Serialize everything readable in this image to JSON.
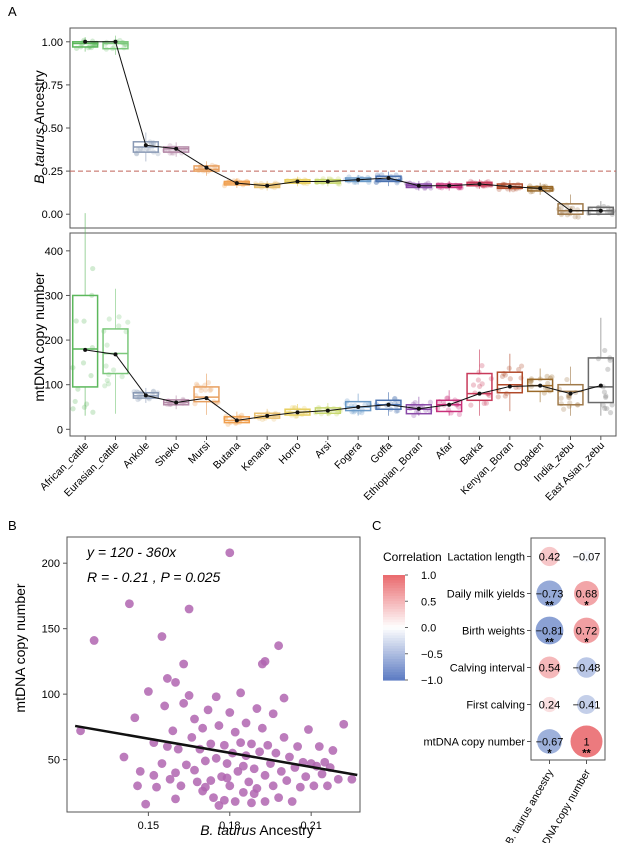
{
  "chart_data": [
    {
      "type": "box",
      "panel_label": "A",
      "ylabel_italic": "B. taurus",
      "ylabel_rest": " Ancestry",
      "ylim": [
        -0.08,
        1.08
      ],
      "yticks": [
        "1.00",
        "0.75",
        "0.50",
        "0.25",
        "0.00"
      ],
      "ytick_values": [
        1.0,
        0.75,
        0.5,
        0.25,
        0.0
      ],
      "reference_line": 0.25,
      "groups": [
        {
          "name": "African_cattle",
          "color": "#5cb85c",
          "q1": 0.97,
          "median": 0.99,
          "q3": 1.0,
          "mean": 1.0
        },
        {
          "name": "Eurasian_cattle",
          "color": "#7cc87c",
          "q1": 0.96,
          "median": 0.99,
          "q3": 1.0,
          "mean": 1.0
        },
        {
          "name": "Ankole",
          "color": "#8a9ab5",
          "q1": 0.36,
          "median": 0.39,
          "q3": 0.42,
          "mean": 0.4
        },
        {
          "name": "Sheko",
          "color": "#b58aa8",
          "q1": 0.36,
          "median": 0.38,
          "q3": 0.39,
          "mean": 0.38
        },
        {
          "name": "Mursi",
          "color": "#e8a060",
          "q1": 0.25,
          "median": 0.26,
          "q3": 0.28,
          "mean": 0.27
        },
        {
          "name": "Butana",
          "color": "#f0a050",
          "q1": 0.17,
          "median": 0.18,
          "q3": 0.19,
          "mean": 0.18
        },
        {
          "name": "Kenana",
          "color": "#e8c070",
          "q1": 0.155,
          "median": 0.165,
          "q3": 0.175,
          "mean": 0.165
        },
        {
          "name": "Horro",
          "color": "#e8d060",
          "q1": 0.18,
          "median": 0.19,
          "q3": 0.2,
          "mean": 0.19
        },
        {
          "name": "Arsi",
          "color": "#c8d870",
          "q1": 0.18,
          "median": 0.19,
          "q3": 0.2,
          "mean": 0.19
        },
        {
          "name": "Fogera",
          "color": "#6a9ac8",
          "q1": 0.19,
          "median": 0.2,
          "q3": 0.21,
          "mean": 0.2
        },
        {
          "name": "Goffa",
          "color": "#4a72b0",
          "q1": 0.19,
          "median": 0.2,
          "q3": 0.22,
          "mean": 0.21
        },
        {
          "name": "Ethiopian_Boran",
          "color": "#8a4aa8",
          "q1": 0.155,
          "median": 0.165,
          "q3": 0.175,
          "mean": 0.165
        },
        {
          "name": "Afar",
          "color": "#c8307a",
          "q1": 0.155,
          "median": 0.165,
          "q3": 0.175,
          "mean": 0.165
        },
        {
          "name": "Barka",
          "color": "#c83a5a",
          "q1": 0.165,
          "median": 0.175,
          "q3": 0.185,
          "mean": 0.175
        },
        {
          "name": "Kenyan_Boran",
          "color": "#b04a2a",
          "q1": 0.15,
          "median": 0.16,
          "q3": 0.175,
          "mean": 0.16
        },
        {
          "name": "Ogaden",
          "color": "#9a6a2a",
          "q1": 0.135,
          "median": 0.15,
          "q3": 0.16,
          "mean": 0.15
        },
        {
          "name": "India_zebu",
          "color": "#a07a4a",
          "q1": 0.0,
          "median": 0.02,
          "q3": 0.06,
          "mean": 0.02
        },
        {
          "name": "East Asian_zebu",
          "color": "#6a6a6a",
          "q1": 0.0,
          "median": 0.02,
          "q3": 0.04,
          "mean": 0.02
        }
      ]
    },
    {
      "type": "box",
      "ylabel": "mtDNA copy number",
      "ylim": [
        -15,
        440
      ],
      "yticks": [
        "400",
        "300",
        "200",
        "100",
        "0"
      ],
      "ytick_values": [
        400,
        300,
        200,
        100,
        0
      ],
      "groups": [
        {
          "name": "African_cattle",
          "q1": 95,
          "median": 180,
          "q3": 300,
          "mean": 178
        },
        {
          "name": "Eurasian_cattle",
          "q1": 125,
          "median": 170,
          "q3": 225,
          "mean": 168
        },
        {
          "name": "Ankole",
          "q1": 70,
          "median": 75,
          "q3": 82,
          "mean": 76
        },
        {
          "name": "Sheko",
          "q1": 55,
          "median": 60,
          "q3": 66,
          "mean": 60
        },
        {
          "name": "Mursi",
          "q1": 62,
          "median": 72,
          "q3": 95,
          "mean": 70
        },
        {
          "name": "Butana",
          "q1": 15,
          "median": 20,
          "q3": 28,
          "mean": 20
        },
        {
          "name": "Kenana",
          "q1": 25,
          "median": 30,
          "q3": 36,
          "mean": 30
        },
        {
          "name": "Horro",
          "q1": 32,
          "median": 38,
          "q3": 45,
          "mean": 38
        },
        {
          "name": "Arsi",
          "q1": 36,
          "median": 42,
          "q3": 48,
          "mean": 42
        },
        {
          "name": "Fogera",
          "q1": 42,
          "median": 50,
          "q3": 62,
          "mean": 50
        },
        {
          "name": "Goffa",
          "q1": 45,
          "median": 55,
          "q3": 65,
          "mean": 55
        },
        {
          "name": "Ethiopian_Boran",
          "q1": 35,
          "median": 45,
          "q3": 55,
          "mean": 46
        },
        {
          "name": "Afar",
          "q1": 40,
          "median": 55,
          "q3": 65,
          "mean": 55
        },
        {
          "name": "Barka",
          "q1": 65,
          "median": 80,
          "q3": 125,
          "mean": 80
        },
        {
          "name": "Kenyan_Boran",
          "q1": 82,
          "median": 100,
          "q3": 128,
          "mean": 96
        },
        {
          "name": "Ogaden",
          "q1": 85,
          "median": 98,
          "q3": 112,
          "mean": 98
        },
        {
          "name": "India_zebu",
          "q1": 55,
          "median": 85,
          "q3": 100,
          "mean": 80
        },
        {
          "name": "East Asian_zebu",
          "q1": 60,
          "median": 95,
          "q3": 160,
          "mean": 98
        }
      ]
    },
    {
      "type": "scatter",
      "panel_label": "B",
      "equation": "y = 120 - 360x",
      "stats": "R = - 0.21 , P = 0.025",
      "xlabel_italic": "B. taurus",
      "xlabel_rest": " Ancestry",
      "ylabel": "mtDNA copy number",
      "xlim": [
        0.12,
        0.228
      ],
      "ylim": [
        10,
        220
      ],
      "xticks": [
        "0.15",
        "0.18",
        "0.21"
      ],
      "xtick_values": [
        0.15,
        0.18,
        0.21
      ],
      "yticks": [
        "200",
        "150",
        "100",
        "50"
      ],
      "ytick_values": [
        200,
        150,
        100,
        50
      ],
      "regression": {
        "intercept": 120,
        "slope": -360
      },
      "point_color": "#b065b0",
      "points": [
        [
          0.125,
          72
        ],
        [
          0.13,
          141
        ],
        [
          0.143,
          169
        ],
        [
          0.155,
          144
        ],
        [
          0.165,
          165
        ],
        [
          0.18,
          208
        ],
        [
          0.198,
          137
        ],
        [
          0.193,
          125
        ],
        [
          0.192,
          123
        ],
        [
          0.141,
          52
        ],
        [
          0.145,
          82
        ],
        [
          0.147,
          41
        ],
        [
          0.15,
          102
        ],
        [
          0.152,
          63
        ],
        [
          0.153,
          29
        ],
        [
          0.155,
          47
        ],
        [
          0.156,
          91
        ],
        [
          0.157,
          112
        ],
        [
          0.158,
          35
        ],
        [
          0.159,
          72
        ],
        [
          0.16,
          40
        ],
        [
          0.16,
          109
        ],
        [
          0.161,
          58
        ],
        [
          0.162,
          30
        ],
        [
          0.163,
          93
        ],
        [
          0.163,
          123
        ],
        [
          0.164,
          46
        ],
        [
          0.165,
          99
        ],
        [
          0.166,
          67
        ],
        [
          0.167,
          42
        ],
        [
          0.167,
          81
        ],
        [
          0.168,
          33
        ],
        [
          0.169,
          58
        ],
        [
          0.17,
          26
        ],
        [
          0.17,
          74
        ],
        [
          0.171,
          49
        ],
        [
          0.172,
          88
        ],
        [
          0.173,
          34
        ],
        [
          0.173,
          62
        ],
        [
          0.174,
          21
        ],
        [
          0.175,
          51
        ],
        [
          0.175,
          98
        ],
        [
          0.176,
          76
        ],
        [
          0.177,
          37
        ],
        [
          0.178,
          61
        ],
        [
          0.178,
          19
        ],
        [
          0.179,
          47
        ],
        [
          0.18,
          86
        ],
        [
          0.18,
          30
        ],
        [
          0.181,
          55
        ],
        [
          0.182,
          71
        ],
        [
          0.182,
          18
        ],
        [
          0.183,
          41
        ],
        [
          0.184,
          101
        ],
        [
          0.184,
          63
        ],
        [
          0.185,
          25
        ],
        [
          0.186,
          53
        ],
        [
          0.186,
          78
        ],
        [
          0.187,
          33
        ],
        [
          0.188,
          62
        ],
        [
          0.188,
          17
        ],
        [
          0.189,
          43
        ],
        [
          0.19,
          89
        ],
        [
          0.19,
          28
        ],
        [
          0.191,
          56
        ],
        [
          0.192,
          74
        ],
        [
          0.193,
          38
        ],
        [
          0.193,
          18
        ],
        [
          0.194,
          61
        ],
        [
          0.195,
          47
        ],
        [
          0.196,
          30
        ],
        [
          0.196,
          85
        ],
        [
          0.197,
          55
        ],
        [
          0.198,
          21
        ],
        [
          0.199,
          41
        ],
        [
          0.2,
          67
        ],
        [
          0.2,
          97
        ],
        [
          0.201,
          34
        ],
        [
          0.202,
          52
        ],
        [
          0.203,
          18
        ],
        [
          0.204,
          44
        ],
        [
          0.205,
          60
        ],
        [
          0.206,
          29
        ],
        [
          0.207,
          48
        ],
        [
          0.208,
          37
        ],
        [
          0.209,
          73
        ],
        [
          0.21,
          47
        ],
        [
          0.211,
          30
        ],
        [
          0.212,
          45
        ],
        [
          0.213,
          60
        ],
        [
          0.214,
          39
        ],
        [
          0.215,
          48
        ],
        [
          0.216,
          30
        ],
        [
          0.217,
          44
        ],
        [
          0.218,
          57
        ],
        [
          0.22,
          35
        ],
        [
          0.222,
          77
        ],
        [
          0.225,
          35
        ],
        [
          0.146,
          30
        ],
        [
          0.149,
          16
        ],
        [
          0.152,
          38
        ],
        [
          0.157,
          60
        ],
        [
          0.16,
          20
        ],
        [
          0.171,
          29
        ],
        [
          0.176,
          15
        ],
        [
          0.179,
          36
        ],
        [
          0.185,
          45
        ],
        [
          0.189,
          24
        ]
      ]
    },
    {
      "type": "heatmap",
      "panel_label": "C",
      "legend_title": "Correlation",
      "legend_ticks": [
        "1.0",
        "0.5",
        "0.0",
        "−0.5",
        "−1.0"
      ],
      "legend_tick_values": [
        1.0,
        0.5,
        0.0,
        -0.5,
        -1.0
      ],
      "rows": [
        "Lactation length",
        "Daily milk yields",
        "Birth weights",
        "Calving interval",
        "First calving",
        "mtDNA copy number"
      ],
      "columns": [
        "B. taurus ancestry",
        "mtDNA copy number"
      ],
      "values": [
        [
          0.42,
          -0.07
        ],
        [
          -0.73,
          0.68
        ],
        [
          -0.81,
          0.72
        ],
        [
          0.54,
          -0.48
        ],
        [
          0.24,
          -0.41
        ],
        [
          -0.67,
          1
        ]
      ],
      "labels": [
        [
          "0.42",
          "−0.07"
        ],
        [
          "−0.73",
          "0.68"
        ],
        [
          "−0.81",
          "0.72"
        ],
        [
          "0.54",
          "−0.48"
        ],
        [
          "0.24",
          "−0.41"
        ],
        [
          "−0.67",
          "1"
        ]
      ],
      "significance": [
        [
          "",
          ""
        ],
        [
          "**",
          "*"
        ],
        [
          "**",
          "*"
        ],
        [
          "",
          ""
        ],
        [
          "",
          ""
        ],
        [
          "*",
          "**"
        ]
      ]
    }
  ]
}
